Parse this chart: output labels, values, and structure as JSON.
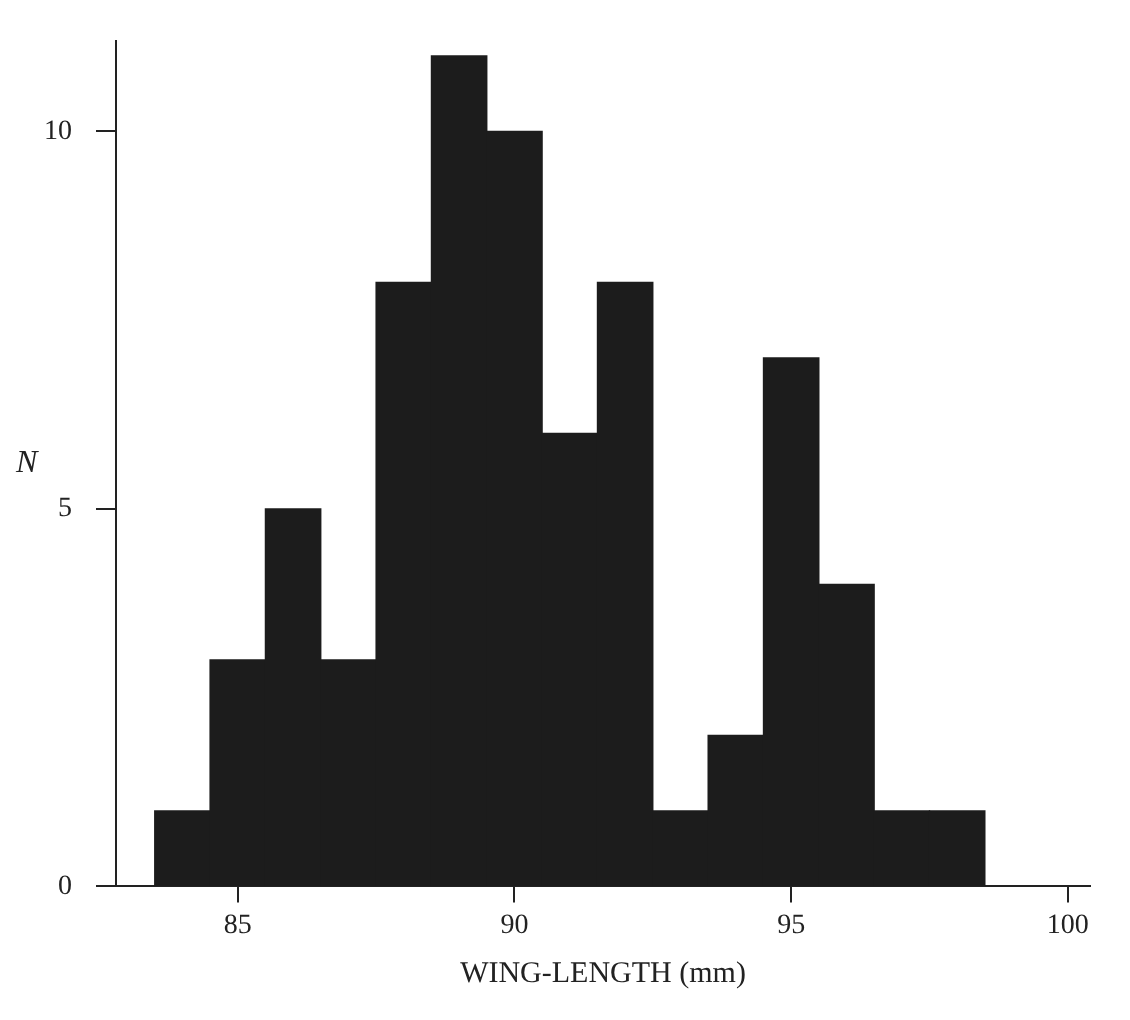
{
  "chart_data": {
    "type": "histogram",
    "xlabel": "WING-LENGTH (mm)",
    "ylabel": "N",
    "bins": [
      83.5,
      84.5,
      85.5,
      86.5,
      87.5,
      88.5,
      89.5,
      90.5,
      91.5,
      92.5,
      93.5,
      94.5,
      95.5,
      96.5,
      97.5,
      98.5
    ],
    "values": [
      1,
      3,
      5,
      3,
      8,
      11,
      10,
      6,
      8,
      1,
      2,
      7,
      4,
      1,
      1
    ],
    "color": "#1c1c1c",
    "xlim": [
      82.8,
      100.4
    ],
    "xticks": [
      85,
      90,
      95,
      100
    ],
    "ylim": [
      0,
      11.2
    ],
    "yticks": [
      0,
      5,
      10
    ],
    "grid": false,
    "legend": false
  }
}
